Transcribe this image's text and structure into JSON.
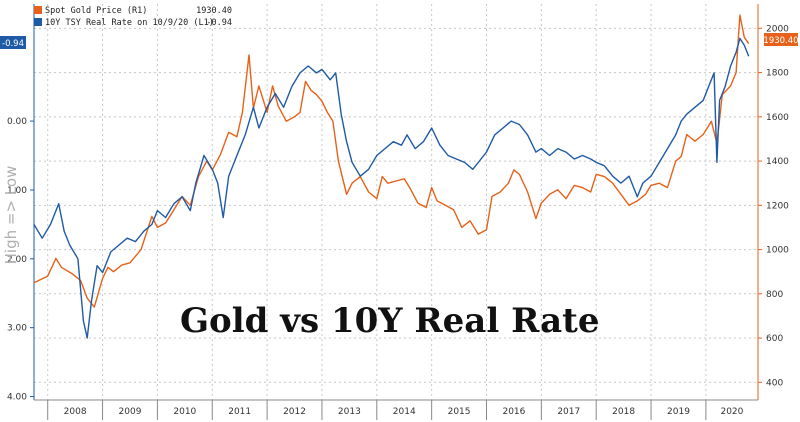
{
  "chart_data": {
    "type": "line",
    "title": "Gold vs 10Y Real Rate",
    "ylabel_left": "High => Low",
    "x_categories": [
      "2008",
      "2009",
      "2010",
      "2011",
      "2012",
      "2013",
      "2014",
      "2015",
      "2016",
      "2017",
      "2018",
      "2019",
      "2020"
    ],
    "y_left": {
      "ticks": [
        "0.00",
        "1.00",
        "2.00",
        "3.00",
        "4.00"
      ],
      "range": [
        -1.7,
        4.05
      ],
      "inverted": true
    },
    "y_right": {
      "ticks": [
        "400",
        "600",
        "800",
        "1000",
        "1200",
        "1400",
        "1600",
        "1800",
        "2000"
      ],
      "range": [
        320,
        2110
      ]
    },
    "grid": true,
    "legend_position": "top-left",
    "series": [
      {
        "name": "Spot Gold Price (R1)",
        "last_value": "1930.40",
        "axis": "right",
        "color": "#e8611a",
        "points": [
          [
            2007.75,
            850
          ],
          [
            2008.0,
            880
          ],
          [
            2008.15,
            960
          ],
          [
            2008.25,
            920
          ],
          [
            2008.45,
            890
          ],
          [
            2008.6,
            860
          ],
          [
            2008.72,
            780
          ],
          [
            2008.85,
            740
          ],
          [
            2009.0,
            870
          ],
          [
            2009.1,
            920
          ],
          [
            2009.2,
            900
          ],
          [
            2009.35,
            930
          ],
          [
            2009.5,
            940
          ],
          [
            2009.7,
            1000
          ],
          [
            2009.9,
            1150
          ],
          [
            2010.0,
            1100
          ],
          [
            2010.15,
            1120
          ],
          [
            2010.3,
            1180
          ],
          [
            2010.45,
            1240
          ],
          [
            2010.6,
            1200
          ],
          [
            2010.75,
            1330
          ],
          [
            2010.9,
            1400
          ],
          [
            2011.0,
            1360
          ],
          [
            2011.15,
            1430
          ],
          [
            2011.3,
            1530
          ],
          [
            2011.45,
            1510
          ],
          [
            2011.55,
            1620
          ],
          [
            2011.67,
            1880
          ],
          [
            2011.75,
            1640
          ],
          [
            2011.85,
            1740
          ],
          [
            2012.0,
            1620
          ],
          [
            2012.1,
            1740
          ],
          [
            2012.2,
            1650
          ],
          [
            2012.35,
            1580
          ],
          [
            2012.5,
            1600
          ],
          [
            2012.6,
            1620
          ],
          [
            2012.7,
            1760
          ],
          [
            2012.8,
            1720
          ],
          [
            2012.9,
            1700
          ],
          [
            2013.0,
            1670
          ],
          [
            2013.1,
            1620
          ],
          [
            2013.2,
            1580
          ],
          [
            2013.3,
            1400
          ],
          [
            2013.45,
            1250
          ],
          [
            2013.55,
            1300
          ],
          [
            2013.7,
            1330
          ],
          [
            2013.85,
            1260
          ],
          [
            2014.0,
            1230
          ],
          [
            2014.1,
            1330
          ],
          [
            2014.2,
            1300
          ],
          [
            2014.35,
            1310
          ],
          [
            2014.5,
            1320
          ],
          [
            2014.6,
            1280
          ],
          [
            2014.75,
            1210
          ],
          [
            2014.9,
            1190
          ],
          [
            2015.0,
            1280
          ],
          [
            2015.1,
            1220
          ],
          [
            2015.25,
            1200
          ],
          [
            2015.4,
            1180
          ],
          [
            2015.55,
            1100
          ],
          [
            2015.7,
            1130
          ],
          [
            2015.85,
            1070
          ],
          [
            2016.0,
            1090
          ],
          [
            2016.1,
            1240
          ],
          [
            2016.25,
            1260
          ],
          [
            2016.4,
            1300
          ],
          [
            2016.5,
            1360
          ],
          [
            2016.6,
            1340
          ],
          [
            2016.75,
            1260
          ],
          [
            2016.9,
            1140
          ],
          [
            2017.0,
            1210
          ],
          [
            2017.15,
            1250
          ],
          [
            2017.3,
            1270
          ],
          [
            2017.45,
            1230
          ],
          [
            2017.6,
            1290
          ],
          [
            2017.75,
            1280
          ],
          [
            2017.9,
            1260
          ],
          [
            2018.0,
            1340
          ],
          [
            2018.15,
            1330
          ],
          [
            2018.3,
            1300
          ],
          [
            2018.45,
            1250
          ],
          [
            2018.6,
            1200
          ],
          [
            2018.75,
            1220
          ],
          [
            2018.9,
            1250
          ],
          [
            2019.0,
            1290
          ],
          [
            2019.15,
            1300
          ],
          [
            2019.3,
            1280
          ],
          [
            2019.45,
            1400
          ],
          [
            2019.55,
            1420
          ],
          [
            2019.65,
            1520
          ],
          [
            2019.8,
            1490
          ],
          [
            2019.95,
            1520
          ],
          [
            2020.1,
            1580
          ],
          [
            2020.2,
            1480
          ],
          [
            2020.3,
            1700
          ],
          [
            2020.45,
            1740
          ],
          [
            2020.55,
            1800
          ],
          [
            2020.62,
            2060
          ],
          [
            2020.7,
            1960
          ],
          [
            2020.78,
            1930.4
          ]
        ]
      },
      {
        "name": "10Y TSY Real Rate on 10/9/20 (L1)",
        "last_value": "-0.94",
        "axis": "left",
        "color": "#1f5aa6",
        "points": [
          [
            2007.75,
            1.5
          ],
          [
            2007.9,
            1.7
          ],
          [
            2008.05,
            1.5
          ],
          [
            2008.2,
            1.2
          ],
          [
            2008.3,
            1.6
          ],
          [
            2008.4,
            1.8
          ],
          [
            2008.55,
            2.0
          ],
          [
            2008.65,
            2.9
          ],
          [
            2008.72,
            3.15
          ],
          [
            2008.8,
            2.6
          ],
          [
            2008.9,
            2.1
          ],
          [
            2009.0,
            2.2
          ],
          [
            2009.15,
            1.9
          ],
          [
            2009.3,
            1.8
          ],
          [
            2009.45,
            1.7
          ],
          [
            2009.6,
            1.75
          ],
          [
            2009.75,
            1.6
          ],
          [
            2009.9,
            1.5
          ],
          [
            2010.0,
            1.3
          ],
          [
            2010.15,
            1.4
          ],
          [
            2010.3,
            1.2
          ],
          [
            2010.45,
            1.1
          ],
          [
            2010.6,
            1.3
          ],
          [
            2010.7,
            0.9
          ],
          [
            2010.85,
            0.5
          ],
          [
            2011.0,
            0.7
          ],
          [
            2011.1,
            0.9
          ],
          [
            2011.2,
            1.4
          ],
          [
            2011.3,
            0.8
          ],
          [
            2011.45,
            0.5
          ],
          [
            2011.6,
            0.2
          ],
          [
            2011.75,
            -0.2
          ],
          [
            2011.85,
            0.1
          ],
          [
            2012.0,
            -0.2
          ],
          [
            2012.15,
            -0.4
          ],
          [
            2012.3,
            -0.2
          ],
          [
            2012.45,
            -0.5
          ],
          [
            2012.6,
            -0.7
          ],
          [
            2012.75,
            -0.8
          ],
          [
            2012.9,
            -0.7
          ],
          [
            2013.0,
            -0.75
          ],
          [
            2013.15,
            -0.6
          ],
          [
            2013.25,
            -0.7
          ],
          [
            2013.35,
            -0.1
          ],
          [
            2013.45,
            0.3
          ],
          [
            2013.55,
            0.6
          ],
          [
            2013.7,
            0.8
          ],
          [
            2013.85,
            0.7
          ],
          [
            2014.0,
            0.5
          ],
          [
            2014.15,
            0.4
          ],
          [
            2014.3,
            0.3
          ],
          [
            2014.45,
            0.35
          ],
          [
            2014.55,
            0.2
          ],
          [
            2014.7,
            0.4
          ],
          [
            2014.85,
            0.3
          ],
          [
            2015.0,
            0.1
          ],
          [
            2015.15,
            0.35
          ],
          [
            2015.3,
            0.5
          ],
          [
            2015.45,
            0.55
          ],
          [
            2015.6,
            0.6
          ],
          [
            2015.75,
            0.7
          ],
          [
            2015.9,
            0.55
          ],
          [
            2016.0,
            0.45
          ],
          [
            2016.15,
            0.2
          ],
          [
            2016.3,
            0.1
          ],
          [
            2016.45,
            0.0
          ],
          [
            2016.6,
            0.05
          ],
          [
            2016.75,
            0.2
          ],
          [
            2016.9,
            0.45
          ],
          [
            2017.0,
            0.4
          ],
          [
            2017.15,
            0.5
          ],
          [
            2017.3,
            0.4
          ],
          [
            2017.45,
            0.45
          ],
          [
            2017.6,
            0.55
          ],
          [
            2017.75,
            0.5
          ],
          [
            2017.9,
            0.55
          ],
          [
            2018.0,
            0.6
          ],
          [
            2018.15,
            0.65
          ],
          [
            2018.3,
            0.8
          ],
          [
            2018.45,
            0.9
          ],
          [
            2018.6,
            0.8
          ],
          [
            2018.75,
            1.1
          ],
          [
            2018.85,
            0.9
          ],
          [
            2019.0,
            0.8
          ],
          [
            2019.15,
            0.6
          ],
          [
            2019.3,
            0.4
          ],
          [
            2019.45,
            0.2
          ],
          [
            2019.55,
            0.0
          ],
          [
            2019.65,
            -0.1
          ],
          [
            2019.8,
            -0.2
          ],
          [
            2019.95,
            -0.3
          ],
          [
            2020.05,
            -0.5
          ],
          [
            2020.15,
            -0.7
          ],
          [
            2020.2,
            0.6
          ],
          [
            2020.25,
            -0.3
          ],
          [
            2020.35,
            -0.5
          ],
          [
            2020.45,
            -0.8
          ],
          [
            2020.55,
            -1.0
          ],
          [
            2020.62,
            -1.2
          ],
          [
            2020.7,
            -1.1
          ],
          [
            2020.78,
            -0.94
          ]
        ]
      }
    ]
  },
  "colors": {
    "gold": "#e8611a",
    "real_rate": "#1f5aa6",
    "grid": "#c8c8c8"
  }
}
